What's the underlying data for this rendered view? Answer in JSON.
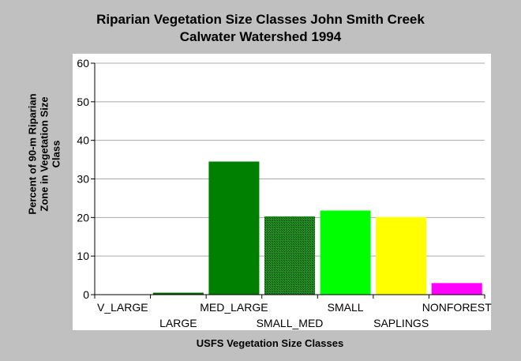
{
  "chart_data": {
    "type": "bar",
    "title": [
      "Riparian Vegetation Size Classes John Smith Creek",
      "Calwater Watershed 1994"
    ],
    "xlabel": "USFS Vegetation Size Classes",
    "ylabel": [
      "Percent of 90-m Riparian",
      "Zone in Vegetation Size",
      "Class"
    ],
    "categories": [
      "V_LARGE",
      "LARGE",
      "MED_LARGE",
      "SMALL_MED",
      "SMALL",
      "SAPLINGS",
      "NONFOREST"
    ],
    "values": [
      0,
      0.5,
      34.5,
      20.3,
      21.8,
      20.1,
      3.0
    ],
    "colors": [
      "#006400",
      "#006400",
      "#008000",
      "#228b22",
      "#00ff00",
      "#ffff00",
      "#ff00ff"
    ],
    "hatched": [
      false,
      false,
      false,
      true,
      false,
      false,
      false
    ],
    "ylim": [
      0,
      60
    ],
    "yticks": [
      0,
      10,
      20,
      30,
      40,
      50,
      60
    ],
    "grid": true,
    "legend": "none"
  }
}
